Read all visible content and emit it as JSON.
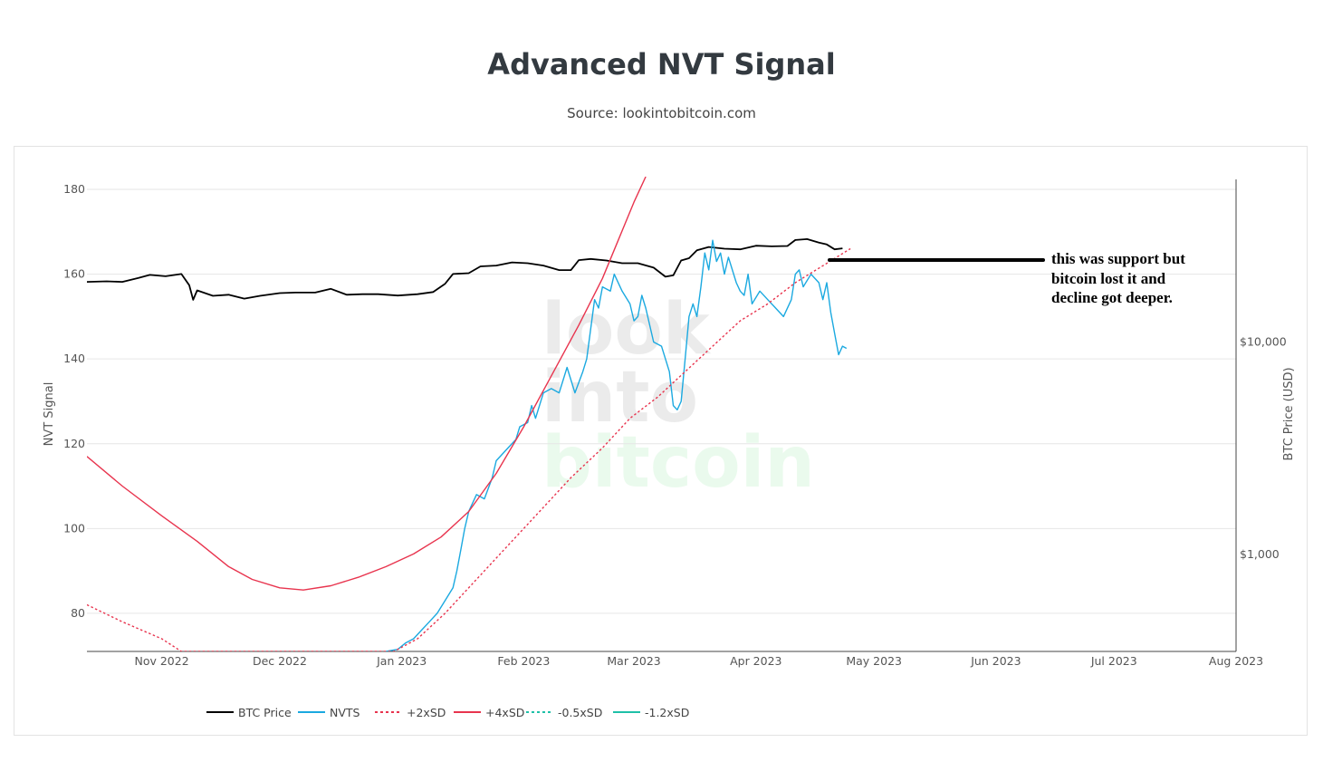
{
  "title": "Advanced NVT Signal",
  "subtitle": "Source: lookintobitcoin.com",
  "annotation": {
    "line1": "this was support but",
    "line2": "bitcoin lost it and",
    "line3": "decline got deeper."
  },
  "watermark": {
    "line1": "look",
    "line2": "into",
    "line3": "bitcoin"
  },
  "colors": {
    "btc_price": "#000000",
    "nvts": "#1ba9e0",
    "plus2sd": "#e8344e",
    "plus4sd": "#e8344e",
    "minus05sd": "#1fc0a8",
    "minus12sd": "#1fc0a8"
  },
  "chart_data": {
    "type": "line",
    "y_left_label": "NVT Signal",
    "y_right_label": "BTC Price (USD)",
    "y_left_ticks": [
      "80",
      "100",
      "120",
      "140",
      "160",
      "180"
    ],
    "y_left_range": [
      71,
      183
    ],
    "y_right_ticks": [
      "$1,000",
      "$10,000"
    ],
    "y_right_scale": "log",
    "y_right_range": [
      350,
      60000
    ],
    "x_range": [
      "2022-10-13",
      "2023-08-01"
    ],
    "x_ticks": [
      {
        "label": "Nov 2022",
        "date": "2022-11-01"
      },
      {
        "label": "Dec 2022",
        "date": "2022-12-01"
      },
      {
        "label": "Jan 2023",
        "date": "2023-01-01"
      },
      {
        "label": "Feb 2023",
        "date": "2023-02-01"
      },
      {
        "label": "Mar 2023",
        "date": "2023-03-01"
      },
      {
        "label": "Apr 2023",
        "date": "2023-04-01"
      },
      {
        "label": "May 2023",
        "date": "2023-05-01"
      },
      {
        "label": "Jun 2023",
        "date": "2023-06-01"
      },
      {
        "label": "Jul 2023",
        "date": "2023-07-01"
      },
      {
        "label": "Aug 2023",
        "date": "2023-08-01"
      }
    ],
    "legend_position": "bottom-left",
    "series": [
      {
        "name": "BTC Price",
        "axis": "right",
        "style": "solid",
        "points": [
          [
            "2022-10-13",
            19200
          ],
          [
            "2022-10-18",
            19300
          ],
          [
            "2022-10-22",
            19200
          ],
          [
            "2022-10-26",
            20000
          ],
          [
            "2022-10-29",
            20700
          ],
          [
            "2022-11-02",
            20400
          ],
          [
            "2022-11-06",
            20900
          ],
          [
            "2022-11-08",
            18500
          ],
          [
            "2022-11-09",
            15800
          ],
          [
            "2022-11-10",
            17500
          ],
          [
            "2022-11-14",
            16500
          ],
          [
            "2022-11-18",
            16700
          ],
          [
            "2022-11-22",
            16000
          ],
          [
            "2022-11-26",
            16500
          ],
          [
            "2022-12-01",
            17000
          ],
          [
            "2022-12-05",
            17100
          ],
          [
            "2022-12-10",
            17100
          ],
          [
            "2022-12-14",
            17800
          ],
          [
            "2022-12-18",
            16700
          ],
          [
            "2022-12-22",
            16800
          ],
          [
            "2022-12-26",
            16800
          ],
          [
            "2022-12-31",
            16550
          ],
          [
            "2023-01-05",
            16800
          ],
          [
            "2023-01-09",
            17200
          ],
          [
            "2023-01-12",
            18800
          ],
          [
            "2023-01-14",
            20900
          ],
          [
            "2023-01-18",
            21100
          ],
          [
            "2023-01-21",
            22700
          ],
          [
            "2023-01-25",
            22900
          ],
          [
            "2023-01-29",
            23700
          ],
          [
            "2023-02-02",
            23500
          ],
          [
            "2023-02-06",
            22900
          ],
          [
            "2023-02-10",
            21800
          ],
          [
            "2023-02-13",
            21800
          ],
          [
            "2023-02-15",
            24300
          ],
          [
            "2023-02-18",
            24600
          ],
          [
            "2023-02-22",
            24200
          ],
          [
            "2023-02-26",
            23500
          ],
          [
            "2023-03-02",
            23500
          ],
          [
            "2023-03-06",
            22400
          ],
          [
            "2023-03-09",
            20300
          ],
          [
            "2023-03-11",
            20600
          ],
          [
            "2023-03-13",
            24200
          ],
          [
            "2023-03-15",
            24800
          ],
          [
            "2023-03-17",
            27000
          ],
          [
            "2023-03-20",
            28000
          ],
          [
            "2023-03-24",
            27500
          ],
          [
            "2023-03-28",
            27300
          ],
          [
            "2023-04-01",
            28400
          ],
          [
            "2023-04-05",
            28200
          ],
          [
            "2023-04-09",
            28300
          ],
          [
            "2023-04-11",
            30200
          ],
          [
            "2023-04-14",
            30500
          ],
          [
            "2023-04-17",
            29400
          ],
          [
            "2023-04-19",
            28800
          ],
          [
            "2023-04-21",
            27300
          ],
          [
            "2023-04-23",
            27600
          ]
        ]
      },
      {
        "name": "NVTS",
        "axis": "left",
        "style": "solid",
        "points": [
          [
            "2022-12-28",
            71
          ],
          [
            "2022-12-31",
            71.5
          ],
          [
            "2023-01-02",
            73
          ],
          [
            "2023-01-04",
            74
          ],
          [
            "2023-01-06",
            76
          ],
          [
            "2023-01-08",
            78
          ],
          [
            "2023-01-10",
            80
          ],
          [
            "2023-01-12",
            83
          ],
          [
            "2023-01-14",
            86
          ],
          [
            "2023-01-15",
            90
          ],
          [
            "2023-01-16",
            95
          ],
          [
            "2023-01-17",
            100
          ],
          [
            "2023-01-18",
            104
          ],
          [
            "2023-01-20",
            108
          ],
          [
            "2023-01-22",
            107
          ],
          [
            "2023-01-24",
            112
          ],
          [
            "2023-01-25",
            116
          ],
          [
            "2023-01-28",
            119
          ],
          [
            "2023-01-30",
            121
          ],
          [
            "2023-01-31",
            124
          ],
          [
            "2023-02-02",
            125
          ],
          [
            "2023-02-03",
            129
          ],
          [
            "2023-02-04",
            126
          ],
          [
            "2023-02-06",
            132
          ],
          [
            "2023-02-08",
            133
          ],
          [
            "2023-02-10",
            132
          ],
          [
            "2023-02-12",
            138
          ],
          [
            "2023-02-14",
            132
          ],
          [
            "2023-02-16",
            137
          ],
          [
            "2023-02-17",
            140
          ],
          [
            "2023-02-19",
            154
          ],
          [
            "2023-02-20",
            152
          ],
          [
            "2023-02-21",
            157
          ],
          [
            "2023-02-23",
            156
          ],
          [
            "2023-02-24",
            160
          ],
          [
            "2023-02-26",
            156
          ],
          [
            "2023-02-28",
            153
          ],
          [
            "2023-03-01",
            149
          ],
          [
            "2023-03-02",
            150
          ],
          [
            "2023-03-03",
            155
          ],
          [
            "2023-03-04",
            152
          ],
          [
            "2023-03-06",
            144
          ],
          [
            "2023-03-08",
            143
          ],
          [
            "2023-03-10",
            137
          ],
          [
            "2023-03-11",
            129
          ],
          [
            "2023-03-12",
            128
          ],
          [
            "2023-03-13",
            130
          ],
          [
            "2023-03-14",
            140
          ],
          [
            "2023-03-15",
            150
          ],
          [
            "2023-03-16",
            153
          ],
          [
            "2023-03-17",
            150
          ],
          [
            "2023-03-18",
            157
          ],
          [
            "2023-03-19",
            165
          ],
          [
            "2023-03-20",
            161
          ],
          [
            "2023-03-21",
            168
          ],
          [
            "2023-03-22",
            163
          ],
          [
            "2023-03-23",
            165
          ],
          [
            "2023-03-24",
            160
          ],
          [
            "2023-03-25",
            164
          ],
          [
            "2023-03-27",
            158
          ],
          [
            "2023-03-28",
            156
          ],
          [
            "2023-03-29",
            155
          ],
          [
            "2023-03-30",
            160
          ],
          [
            "2023-03-31",
            153
          ],
          [
            "2023-04-02",
            156
          ],
          [
            "2023-04-04",
            154
          ],
          [
            "2023-04-06",
            152
          ],
          [
            "2023-04-08",
            150
          ],
          [
            "2023-04-10",
            154
          ],
          [
            "2023-04-11",
            160
          ],
          [
            "2023-04-12",
            161
          ],
          [
            "2023-04-13",
            157
          ],
          [
            "2023-04-15",
            160
          ],
          [
            "2023-04-17",
            158
          ],
          [
            "2023-04-18",
            154
          ],
          [
            "2023-04-19",
            158
          ],
          [
            "2023-04-20",
            151
          ],
          [
            "2023-04-21",
            146
          ],
          [
            "2023-04-22",
            141
          ],
          [
            "2023-04-23",
            143
          ],
          [
            "2023-04-24",
            142.5
          ]
        ]
      },
      {
        "name": "+2xSD",
        "axis": "left",
        "style": "dotted",
        "points": [
          [
            "2022-10-13",
            82
          ],
          [
            "2022-10-22",
            78
          ],
          [
            "2022-11-01",
            74
          ],
          [
            "2022-11-06",
            71
          ],
          [
            "2022-12-30",
            71
          ],
          [
            "2023-01-05",
            74
          ],
          [
            "2023-01-12",
            80
          ],
          [
            "2023-01-20",
            88
          ],
          [
            "2023-01-28",
            96
          ],
          [
            "2023-02-05",
            104
          ],
          [
            "2023-02-13",
            112
          ],
          [
            "2023-02-21",
            119
          ],
          [
            "2023-02-28",
            126
          ],
          [
            "2023-03-07",
            131
          ],
          [
            "2023-03-14",
            137
          ],
          [
            "2023-03-21",
            143
          ],
          [
            "2023-03-28",
            149
          ],
          [
            "2023-04-04",
            153
          ],
          [
            "2023-04-11",
            158
          ],
          [
            "2023-04-18",
            162
          ],
          [
            "2023-04-25",
            166
          ]
        ]
      },
      {
        "name": "+4xSD",
        "axis": "left",
        "style": "solid",
        "points": [
          [
            "2022-10-13",
            117
          ],
          [
            "2022-10-22",
            110
          ],
          [
            "2022-11-01",
            103
          ],
          [
            "2022-11-10",
            97
          ],
          [
            "2022-11-18",
            91
          ],
          [
            "2022-11-24",
            88
          ],
          [
            "2022-12-01",
            86
          ],
          [
            "2022-12-07",
            85.5
          ],
          [
            "2022-12-14",
            86.5
          ],
          [
            "2022-12-21",
            88.5
          ],
          [
            "2022-12-28",
            91
          ],
          [
            "2023-01-04",
            94
          ],
          [
            "2023-01-11",
            98
          ],
          [
            "2023-01-18",
            104
          ],
          [
            "2023-01-25",
            113
          ],
          [
            "2023-02-01",
            124
          ],
          [
            "2023-02-08",
            136
          ],
          [
            "2023-02-15",
            148
          ],
          [
            "2023-02-21",
            159
          ],
          [
            "2023-02-25",
            168
          ],
          [
            "2023-03-01",
            177
          ],
          [
            "2023-03-04",
            183
          ]
        ]
      },
      {
        "name": "-0.5xSD",
        "axis": "left",
        "style": "dotted",
        "points": []
      },
      {
        "name": "-1.2xSD",
        "axis": "left",
        "style": "solid",
        "points": []
      }
    ],
    "legend": [
      "BTC Price",
      "NVTS",
      "+2xSD",
      "+4xSD",
      "-0.5xSD",
      "-1.2xSD"
    ],
    "annotation_arrow": {
      "from": [
        "2023-04-25",
        162.5
      ],
      "to": "annotation-text"
    }
  }
}
